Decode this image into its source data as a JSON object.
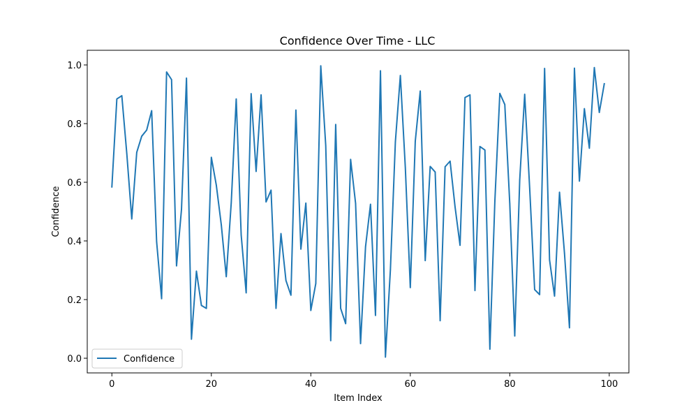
{
  "chart_data": {
    "type": "line",
    "title": "Confidence Over Time - LLC",
    "xlabel": "Item Index",
    "ylabel": "Confidence",
    "xlim": [
      -4.95,
      103.95
    ],
    "ylim": [
      -0.05,
      1.05
    ],
    "xticks": [
      0,
      20,
      40,
      60,
      80,
      100
    ],
    "yticks": [
      0.0,
      0.2,
      0.4,
      0.6,
      0.8,
      1.0
    ],
    "xtick_labels": [
      "0",
      "20",
      "40",
      "60",
      "80",
      "100"
    ],
    "ytick_labels": [
      "0.0",
      "0.2",
      "0.4",
      "0.6",
      "0.8",
      "1.0"
    ],
    "grid": false,
    "legend_position": "lower-left",
    "series": [
      {
        "name": "Confidence",
        "color": "#1f77b4",
        "x": [
          0,
          1,
          2,
          3,
          4,
          5,
          6,
          7,
          8,
          9,
          10,
          11,
          12,
          13,
          14,
          15,
          16,
          17,
          18,
          19,
          20,
          21,
          22,
          23,
          24,
          25,
          26,
          27,
          28,
          29,
          30,
          31,
          32,
          33,
          34,
          35,
          36,
          37,
          38,
          39,
          40,
          41,
          42,
          43,
          44,
          45,
          46,
          47,
          48,
          49,
          50,
          51,
          52,
          53,
          54,
          55,
          56,
          57,
          58,
          59,
          60,
          61,
          62,
          63,
          64,
          65,
          66,
          67,
          68,
          69,
          70,
          71,
          72,
          73,
          74,
          75,
          76,
          77,
          78,
          79,
          80,
          81,
          82,
          83,
          84,
          85,
          86,
          87,
          88,
          89,
          90,
          91,
          92,
          93,
          94,
          95,
          96,
          97,
          98,
          99
        ],
        "values": [
          0.584,
          0.884,
          0.895,
          0.698,
          0.475,
          0.702,
          0.757,
          0.778,
          0.844,
          0.397,
          0.203,
          0.976,
          0.95,
          0.315,
          0.508,
          0.955,
          0.065,
          0.297,
          0.18,
          0.17,
          0.685,
          0.59,
          0.455,
          0.278,
          0.53,
          0.884,
          0.42,
          0.223,
          0.902,
          0.637,
          0.898,
          0.533,
          0.573,
          0.17,
          0.425,
          0.265,
          0.215,
          0.846,
          0.372,
          0.529,
          0.163,
          0.255,
          0.997,
          0.725,
          0.06,
          0.797,
          0.17,
          0.118,
          0.678,
          0.528,
          0.05,
          0.38,
          0.525,
          0.146,
          0.98,
          0.004,
          0.302,
          0.738,
          0.964,
          0.65,
          0.241,
          0.74,
          0.911,
          0.333,
          0.654,
          0.635,
          0.128,
          0.653,
          0.672,
          0.516,
          0.385,
          0.889,
          0.898,
          0.231,
          0.722,
          0.71,
          0.031,
          0.535,
          0.903,
          0.865,
          0.527,
          0.076,
          0.608,
          0.9,
          0.58,
          0.234,
          0.217,
          0.988,
          0.335,
          0.212,
          0.566,
          0.358,
          0.104,
          0.989,
          0.604,
          0.851,
          0.716,
          0.991,
          0.838,
          0.936
        ]
      }
    ]
  }
}
